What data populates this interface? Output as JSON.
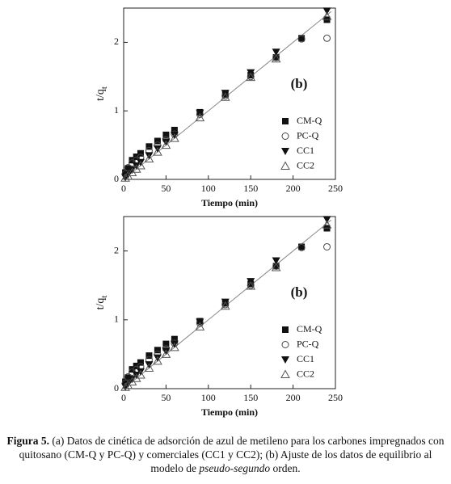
{
  "chart_data": [
    {
      "type": "scatter",
      "annotation": "(b)",
      "xlabel": "Tiempo (min)",
      "ylabel": {
        "main": "t/q",
        "sub": "t"
      },
      "x": [
        2,
        5,
        10,
        15,
        20,
        30,
        40,
        50,
        60,
        90,
        120,
        150,
        180,
        210,
        240
      ],
      "series": [
        {
          "name": "CM-Q",
          "marker": "square",
          "color": "#111111",
          "values": [
            0.1,
            0.16,
            0.28,
            0.33,
            0.38,
            0.48,
            0.56,
            0.65,
            0.72,
            0.98,
            1.24,
            1.52,
            1.78,
            2.06,
            2.33
          ]
        },
        {
          "name": "PC-Q",
          "marker": "circle",
          "color": "#444444",
          "values": [
            0.08,
            0.17,
            0.24,
            0.28,
            0.32,
            0.42,
            0.5,
            0.58,
            0.66,
            0.95,
            1.22,
            1.5,
            1.78,
            2.05,
            2.06
          ]
        },
        {
          "name": "CC1",
          "marker": "triangle-down",
          "color": "#111111",
          "values": [
            0.03,
            0.07,
            0.14,
            0.2,
            0.25,
            0.35,
            0.45,
            0.55,
            0.65,
            0.97,
            1.26,
            1.56,
            1.86,
            null,
            2.46
          ]
        },
        {
          "name": "CC2",
          "marker": "triangle-up",
          "color": "#555555",
          "values": [
            0.02,
            0.05,
            0.1,
            0.15,
            0.2,
            0.3,
            0.4,
            0.5,
            0.6,
            0.9,
            1.2,
            1.49,
            1.76,
            null,
            2.38
          ]
        }
      ],
      "fit_line": {
        "x": [
          3,
          245
        ],
        "values": [
          0.03,
          2.45
        ]
      },
      "xlim": [
        0,
        250
      ],
      "xticks": [
        0,
        50,
        100,
        150,
        200,
        250
      ],
      "ylim": [
        0,
        2.5
      ],
      "yticks": [
        0,
        1,
        2
      ]
    },
    {
      "type": "scatter",
      "annotation": "(b)",
      "xlabel": "Tiempo (min)",
      "ylabel": {
        "main": "t/q",
        "sub": "t"
      },
      "x": [
        2,
        5,
        10,
        15,
        20,
        30,
        40,
        50,
        60,
        90,
        120,
        150,
        180,
        210,
        240
      ],
      "series": [
        {
          "name": "CM-Q",
          "marker": "square",
          "color": "#111111",
          "values": [
            0.1,
            0.16,
            0.28,
            0.33,
            0.38,
            0.48,
            0.56,
            0.65,
            0.72,
            0.98,
            1.24,
            1.52,
            1.78,
            2.06,
            2.33
          ]
        },
        {
          "name": "PC-Q",
          "marker": "circle",
          "color": "#444444",
          "values": [
            0.08,
            0.17,
            0.24,
            0.28,
            0.32,
            0.42,
            0.5,
            0.58,
            0.66,
            0.95,
            1.22,
            1.5,
            1.78,
            2.05,
            2.06
          ]
        },
        {
          "name": "CC1",
          "marker": "triangle-down",
          "color": "#111111",
          "values": [
            0.03,
            0.07,
            0.14,
            0.2,
            0.25,
            0.35,
            0.45,
            0.55,
            0.65,
            0.97,
            1.26,
            1.56,
            1.86,
            null,
            2.46
          ]
        },
        {
          "name": "CC2",
          "marker": "triangle-up",
          "color": "#555555",
          "values": [
            0.02,
            0.05,
            0.1,
            0.15,
            0.2,
            0.3,
            0.4,
            0.5,
            0.6,
            0.9,
            1.2,
            1.49,
            1.76,
            null,
            2.38
          ]
        }
      ],
      "fit_line": {
        "x": [
          3,
          245
        ],
        "values": [
          0.03,
          2.45
        ]
      },
      "xlim": [
        0,
        250
      ],
      "xticks": [
        0,
        50,
        100,
        150,
        200,
        250
      ],
      "ylim": [
        0,
        2.5
      ],
      "yticks": [
        0,
        1,
        2
      ]
    }
  ],
  "caption": {
    "label": "Figura 5.",
    "text": " (a) Datos de cinética de adsorción de azul de metileno para los carbones impregnados con quitosano (CM-Q y PC-Q) y comerciales (CC1 y CC2); (b) Ajuste de los datos de equilibrio al modelo de ",
    "emphasis": "pseudo-segundo",
    "end": " orden."
  }
}
